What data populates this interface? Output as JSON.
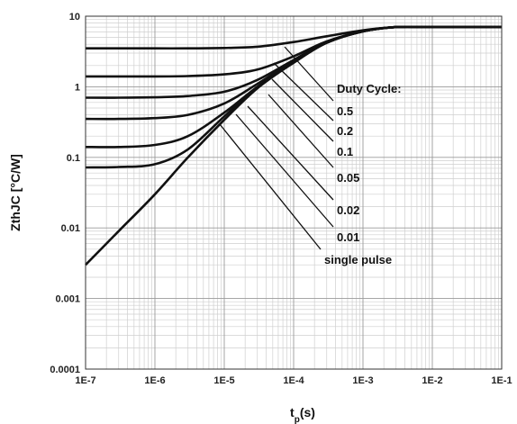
{
  "chart_data": {
    "type": "line",
    "title": "",
    "xlabel": "t",
    "xlabel_sub": "p",
    "xlabel_unit": "(s)",
    "ylabel": "ZthJC [°C/W]",
    "xscale": "log",
    "yscale": "log",
    "xlim": [
      1e-07,
      0.1
    ],
    "ylim": [
      0.0001,
      10
    ],
    "grid": true,
    "x_tick_labels": [
      "1E-7",
      "1E-6",
      "1E-5",
      "1E-4",
      "1E-3",
      "1E-2",
      "1E-1"
    ],
    "y_tick_labels": [
      "0.0001",
      "0.001",
      "0.01",
      "0.1",
      "1",
      "10"
    ],
    "legend_title": "Duty Cycle:",
    "x": [
      1e-07,
      3e-07,
      1e-06,
      3e-06,
      1e-05,
      3e-05,
      0.0001,
      0.0003,
      0.001,
      0.003,
      0.01,
      0.1
    ],
    "series": [
      {
        "name": "0.5",
        "values": [
          3.5,
          3.5,
          3.5,
          3.5,
          3.55,
          3.7,
          4.3,
          5.2,
          6.3,
          7.0,
          7.0,
          7.0
        ]
      },
      {
        "name": "0.2",
        "values": [
          1.4,
          1.4,
          1.4,
          1.42,
          1.5,
          1.75,
          2.7,
          4.4,
          6.1,
          7.0,
          7.0,
          7.0
        ]
      },
      {
        "name": "0.1",
        "values": [
          0.7,
          0.7,
          0.71,
          0.74,
          0.85,
          1.25,
          2.4,
          4.3,
          6.1,
          7.0,
          7.0,
          7.0
        ]
      },
      {
        "name": "0.05",
        "values": [
          0.35,
          0.35,
          0.36,
          0.4,
          0.58,
          1.1,
          2.3,
          4.2,
          6.1,
          7.0,
          7.0,
          7.0
        ]
      },
      {
        "name": "0.02",
        "values": [
          0.14,
          0.14,
          0.15,
          0.2,
          0.43,
          1.0,
          2.2,
          4.2,
          6.1,
          7.0,
          7.0,
          7.0
        ]
      },
      {
        "name": "0.01",
        "values": [
          0.072,
          0.073,
          0.08,
          0.13,
          0.38,
          0.98,
          2.2,
          4.2,
          6.1,
          7.0,
          7.0,
          7.0
        ]
      },
      {
        "name": "single pulse",
        "values": [
          0.003,
          0.009,
          0.03,
          0.1,
          0.34,
          0.95,
          2.2,
          4.2,
          6.1,
          7.0,
          7.0,
          7.0
        ]
      }
    ]
  }
}
